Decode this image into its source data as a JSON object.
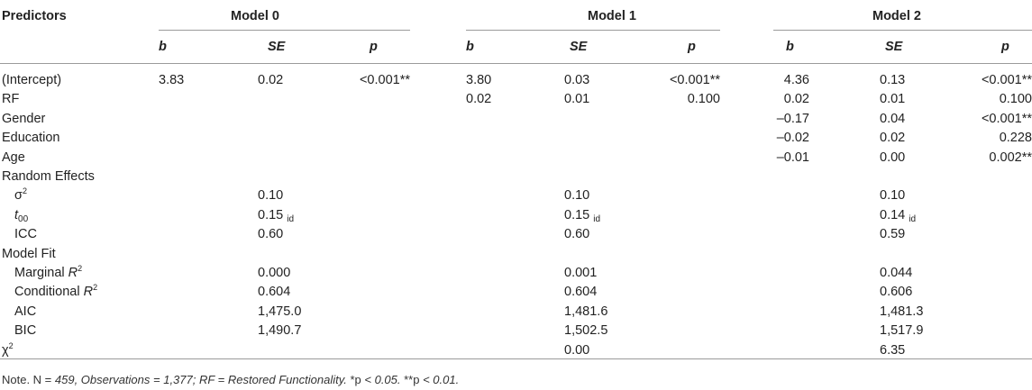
{
  "header": {
    "predictors": "Predictors",
    "models": [
      "Model 0",
      "Model 1",
      "Model 2"
    ],
    "sub": [
      "b",
      "SE",
      "p"
    ]
  },
  "rows": [
    {
      "label": "(Intercept)",
      "indent": false,
      "cells": [
        "3.83",
        "0.02",
        "<0.001**",
        "3.80",
        "0.03",
        "<0.001**",
        "4.36",
        "0.13",
        "<0.001**"
      ]
    },
    {
      "label": "RF",
      "indent": false,
      "cells": [
        "",
        "",
        "",
        "0.02",
        "0.01",
        "0.100",
        "0.02",
        "0.01",
        "0.100"
      ]
    },
    {
      "label": "Gender",
      "indent": false,
      "cells": [
        "",
        "",
        "",
        "",
        "",
        "",
        "–0.17",
        "0.04",
        "<0.001**"
      ]
    },
    {
      "label": "Education",
      "indent": false,
      "cells": [
        "",
        "",
        "",
        "",
        "",
        "",
        "–0.02",
        "0.02",
        "0.228"
      ]
    },
    {
      "label": "Age",
      "indent": false,
      "cells": [
        "",
        "",
        "",
        "",
        "",
        "",
        "–0.01",
        "0.00",
        "0.002**"
      ]
    },
    {
      "label": "Random Effects",
      "indent": false,
      "cells": [
        "",
        "",
        "",
        "",
        "",
        "",
        "",
        "",
        ""
      ]
    },
    {
      "label": "σ",
      "sup": "2",
      "italicLabel": false,
      "indent": true,
      "cells": [
        "",
        "0.10",
        "",
        "",
        "0.10",
        "",
        "",
        "0.10",
        ""
      ]
    },
    {
      "label": "t",
      "sub": "00",
      "italicLabel": true,
      "indent": true,
      "cells": [
        "",
        "0.15",
        "",
        "",
        "0.15",
        "",
        "",
        "0.14",
        ""
      ],
      "cellSub": "id"
    },
    {
      "label": "ICC",
      "indent": true,
      "cells": [
        "",
        "0.60",
        "",
        "",
        "0.60",
        "",
        "",
        "0.59",
        ""
      ]
    },
    {
      "label": "Model Fit",
      "indent": false,
      "cells": [
        "",
        "",
        "",
        "",
        "",
        "",
        "",
        "",
        ""
      ]
    },
    {
      "label": "Marginal ",
      "italicPart": "R",
      "sup": "2",
      "indent": true,
      "cells": [
        "",
        "0.000",
        "",
        "",
        "0.001",
        "",
        "",
        "0.044",
        ""
      ]
    },
    {
      "label": "Conditional ",
      "italicPart": "R",
      "sup": "2",
      "indent": true,
      "cells": [
        "",
        "0.604",
        "",
        "",
        "0.604",
        "",
        "",
        "0.606",
        ""
      ]
    },
    {
      "label": "AIC",
      "indent": true,
      "cells": [
        "",
        "1,475.0",
        "",
        "",
        "1,481.6",
        "",
        "",
        "1,481.3",
        ""
      ]
    },
    {
      "label": "BIC",
      "indent": true,
      "cells": [
        "",
        "1,490.7",
        "",
        "",
        "1,502.5",
        "",
        "",
        "1,517.9",
        ""
      ]
    },
    {
      "label": "χ",
      "sup": "2",
      "indent": false,
      "cells": [
        "",
        "",
        "",
        "",
        "0.00",
        "",
        "",
        "6.35",
        ""
      ]
    }
  ],
  "note": {
    "prefix": "Note. N = ",
    "italic": "459, Observations = 1,377; RF = Restored Functionality.",
    "sig1": " *p ",
    "sig1b": "< 0.05.",
    "sig2": " **p ",
    "sig2b": "< 0.01."
  }
}
